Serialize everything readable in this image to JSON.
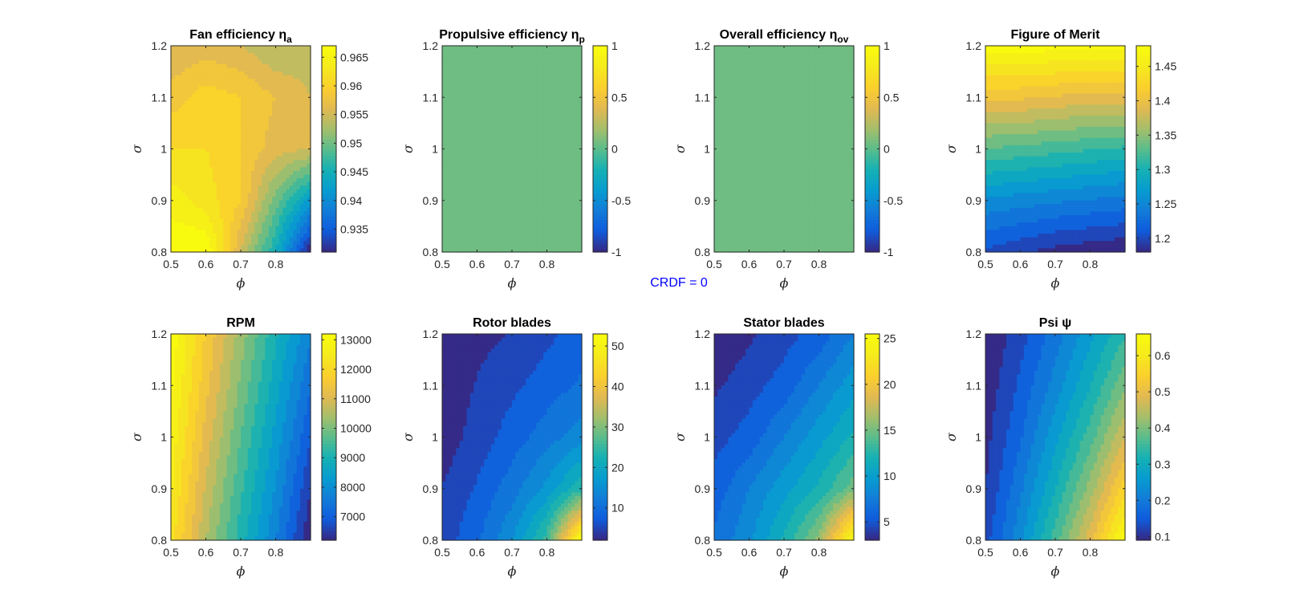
{
  "figure": {
    "annotation": "CRDF = 0",
    "annotation_color": "#0000ff",
    "colormap": "parula"
  },
  "chart_data": [
    {
      "type": "heatmap",
      "id": "fan_eff",
      "title": "Fan efficiency η",
      "title_sub": "a",
      "xlabel": "ϕ",
      "ylabel": "σ",
      "xlim": [
        0.5,
        0.9
      ],
      "ylim": [
        0.8,
        1.2
      ],
      "x_ticks": [
        "0.5",
        "0.6",
        "0.7",
        "0.8"
      ],
      "y_ticks": [
        "0.8",
        "0.9",
        "1",
        "1.1",
        "1.2"
      ],
      "x": [
        0.5,
        0.6,
        0.7,
        0.8,
        0.9
      ],
      "y": [
        0.8,
        0.9,
        1.0,
        1.1,
        1.2
      ],
      "z": [
        [
          0.967,
          0.967,
          0.955,
          0.945,
          0.931
        ],
        [
          0.964,
          0.962,
          0.959,
          0.95,
          0.942
        ],
        [
          0.961,
          0.961,
          0.959,
          0.956,
          0.955
        ],
        [
          0.958,
          0.96,
          0.959,
          0.957,
          0.955
        ],
        [
          0.955,
          0.956,
          0.955,
          0.953,
          0.954
        ]
      ],
      "clim": [
        0.931,
        0.967
      ],
      "cbar_ticks": [
        "0.935",
        "0.94",
        "0.945",
        "0.95",
        "0.955",
        "0.96",
        "0.965"
      ]
    },
    {
      "type": "heatmap",
      "id": "prop_eff",
      "title": "Propulsive efficiency η",
      "title_sub": "p",
      "xlabel": "ϕ",
      "ylabel": "σ",
      "xlim": [
        0.5,
        0.9
      ],
      "ylim": [
        0.8,
        1.2
      ],
      "x_ticks": [
        "0.5",
        "0.6",
        "0.7",
        "0.8"
      ],
      "y_ticks": [
        "0.8",
        "0.9",
        "1",
        "1.1",
        "1.2"
      ],
      "x": [
        0.5,
        0.6,
        0.7,
        0.8,
        0.9
      ],
      "y": [
        0.8,
        0.9,
        1.0,
        1.1,
        1.2
      ],
      "z": [
        [
          0,
          0,
          0,
          0,
          0
        ],
        [
          0,
          0,
          0,
          0,
          0
        ],
        [
          0,
          0,
          0,
          0,
          0
        ],
        [
          0,
          0,
          0,
          0,
          0
        ],
        [
          0,
          0,
          0,
          0,
          0
        ]
      ],
      "clim": [
        -1,
        1
      ],
      "cbar_ticks": [
        "-1",
        "-0.5",
        "0",
        "0.5",
        "1"
      ]
    },
    {
      "type": "heatmap",
      "id": "overall_eff",
      "title": "Overall efficiency η",
      "title_sub": "ov",
      "xlabel": "ϕ",
      "ylabel": "σ",
      "xlim": [
        0.5,
        0.9
      ],
      "ylim": [
        0.8,
        1.2
      ],
      "x_ticks": [
        "0.5",
        "0.6",
        "0.7",
        "0.8"
      ],
      "y_ticks": [
        "0.8",
        "0.9",
        "1",
        "1.1",
        "1.2"
      ],
      "x": [
        0.5,
        0.6,
        0.7,
        0.8,
        0.9
      ],
      "y": [
        0.8,
        0.9,
        1.0,
        1.1,
        1.2
      ],
      "z": [
        [
          0,
          0,
          0,
          0,
          0
        ],
        [
          0,
          0,
          0,
          0,
          0
        ],
        [
          0,
          0,
          0,
          0,
          0
        ],
        [
          0,
          0,
          0,
          0,
          0
        ],
        [
          0,
          0,
          0,
          0,
          0
        ]
      ],
      "clim": [
        -1,
        1
      ],
      "cbar_ticks": [
        "-1",
        "-0.5",
        "0",
        "0.5",
        "1"
      ]
    },
    {
      "type": "heatmap",
      "id": "fom",
      "title": "Figure of Merit",
      "title_sub": "",
      "xlabel": "ϕ",
      "ylabel": "σ",
      "xlim": [
        0.5,
        0.9
      ],
      "ylim": [
        0.8,
        1.2
      ],
      "x_ticks": [
        "0.5",
        "0.6",
        "0.7",
        "0.8"
      ],
      "y_ticks": [
        "0.8",
        "0.9",
        "1",
        "1.1",
        "1.2"
      ],
      "x": [
        0.5,
        0.6,
        0.7,
        0.8,
        0.9
      ],
      "y": [
        0.8,
        0.9,
        1.0,
        1.1,
        1.2
      ],
      "z": [
        [
          1.21,
          1.2,
          1.19,
          1.185,
          1.18
        ],
        [
          1.26,
          1.255,
          1.25,
          1.245,
          1.24
        ],
        [
          1.33,
          1.325,
          1.32,
          1.315,
          1.31
        ],
        [
          1.4,
          1.4,
          1.395,
          1.39,
          1.39
        ],
        [
          1.475,
          1.475,
          1.47,
          1.47,
          1.47
        ]
      ],
      "clim": [
        1.18,
        1.48
      ],
      "cbar_ticks": [
        "1.2",
        "1.25",
        "1.3",
        "1.35",
        "1.4",
        "1.45"
      ]
    },
    {
      "type": "heatmap",
      "id": "rpm",
      "title": "RPM",
      "title_sub": "",
      "xlabel": "ϕ",
      "ylabel": "σ",
      "xlim": [
        0.5,
        0.9
      ],
      "ylim": [
        0.8,
        1.2
      ],
      "x_ticks": [
        "0.5",
        "0.6",
        "0.7",
        "0.8"
      ],
      "y_ticks": [
        "0.8",
        "0.9",
        "1",
        "1.1",
        "1.2"
      ],
      "x": [
        0.5,
        0.6,
        0.7,
        0.8,
        0.9
      ],
      "y": [
        0.8,
        0.9,
        1.0,
        1.1,
        1.2
      ],
      "z": [
        [
          12200,
          10500,
          9100,
          7800,
          6200
        ],
        [
          12500,
          10800,
          9400,
          8100,
          6600
        ],
        [
          12700,
          11100,
          9700,
          8400,
          7000
        ],
        [
          12900,
          11400,
          10000,
          8700,
          7400
        ],
        [
          13100,
          11600,
          10300,
          9000,
          7800
        ]
      ],
      "clim": [
        6200,
        13200
      ],
      "cbar_ticks": [
        "7000",
        "8000",
        "9000",
        "10000",
        "11000",
        "12000",
        "13000"
      ]
    },
    {
      "type": "heatmap",
      "id": "rotor",
      "title": "Rotor blades",
      "title_sub": "",
      "xlabel": "ϕ",
      "ylabel": "σ",
      "xlim": [
        0.5,
        0.9
      ],
      "ylim": [
        0.8,
        1.2
      ],
      "x_ticks": [
        "0.5",
        "0.6",
        "0.7",
        "0.8"
      ],
      "y_ticks": [
        "0.8",
        "0.9",
        "1",
        "1.1",
        "1.2"
      ],
      "x": [
        0.5,
        0.6,
        0.7,
        0.8,
        0.9
      ],
      "y": [
        0.8,
        0.9,
        1.0,
        1.1,
        1.2
      ],
      "z": [
        [
          6,
          10,
          16,
          26,
          53
        ],
        [
          5,
          8,
          12,
          17,
          24
        ],
        [
          3,
          6,
          9,
          12,
          15
        ],
        [
          3,
          5,
          7,
          9,
          11
        ],
        [
          3,
          4,
          5,
          7,
          9
        ]
      ],
      "clim": [
        2,
        53
      ],
      "cbar_ticks": [
        "10",
        "20",
        "30",
        "40",
        "50"
      ]
    },
    {
      "type": "heatmap",
      "id": "stator",
      "title": "Stator blades",
      "title_sub": "",
      "xlabel": "ϕ",
      "ylabel": "σ",
      "xlim": [
        0.5,
        0.9
      ],
      "ylim": [
        0.8,
        1.2
      ],
      "x_ticks": [
        "0.5",
        "0.6",
        "0.7",
        "0.8"
      ],
      "y_ticks": [
        "0.8",
        "0.9",
        "1",
        "1.1",
        "1.2"
      ],
      "x": [
        0.5,
        0.6,
        0.7,
        0.8,
        0.9
      ],
      "y": [
        0.8,
        0.9,
        1.0,
        1.1,
        1.2
      ],
      "z": [
        [
          7,
          9,
          12,
          16,
          25
        ],
        [
          6,
          8,
          10,
          12,
          15
        ],
        [
          5,
          6,
          8,
          10,
          12
        ],
        [
          4,
          5,
          6,
          8,
          10
        ],
        [
          3,
          4,
          5,
          6,
          8
        ]
      ],
      "clim": [
        3,
        25.5
      ],
      "cbar_ticks": [
        "5",
        "10",
        "15",
        "20",
        "25"
      ]
    },
    {
      "type": "heatmap",
      "id": "psi",
      "title": "Psi ψ",
      "title_sub": "",
      "xlabel": "ϕ",
      "ylabel": "σ",
      "xlim": [
        0.5,
        0.9
      ],
      "ylim": [
        0.8,
        1.2
      ],
      "x_ticks": [
        "0.5",
        "0.6",
        "0.7",
        "0.8"
      ],
      "y_ticks": [
        "0.8",
        "0.9",
        "1",
        "1.1",
        "1.2"
      ],
      "x": [
        0.5,
        0.6,
        0.7,
        0.8,
        0.9
      ],
      "y": [
        0.8,
        0.9,
        1.0,
        1.1,
        1.2
      ],
      "z": [
        [
          0.14,
          0.24,
          0.36,
          0.49,
          0.65
        ],
        [
          0.12,
          0.21,
          0.31,
          0.42,
          0.55
        ],
        [
          0.11,
          0.18,
          0.27,
          0.36,
          0.47
        ],
        [
          0.1,
          0.16,
          0.23,
          0.31,
          0.4
        ],
        [
          0.09,
          0.14,
          0.2,
          0.27,
          0.34
        ]
      ],
      "clim": [
        0.09,
        0.66
      ],
      "cbar_ticks": [
        "0.1",
        "0.2",
        "0.3",
        "0.4",
        "0.5",
        "0.6"
      ]
    }
  ]
}
